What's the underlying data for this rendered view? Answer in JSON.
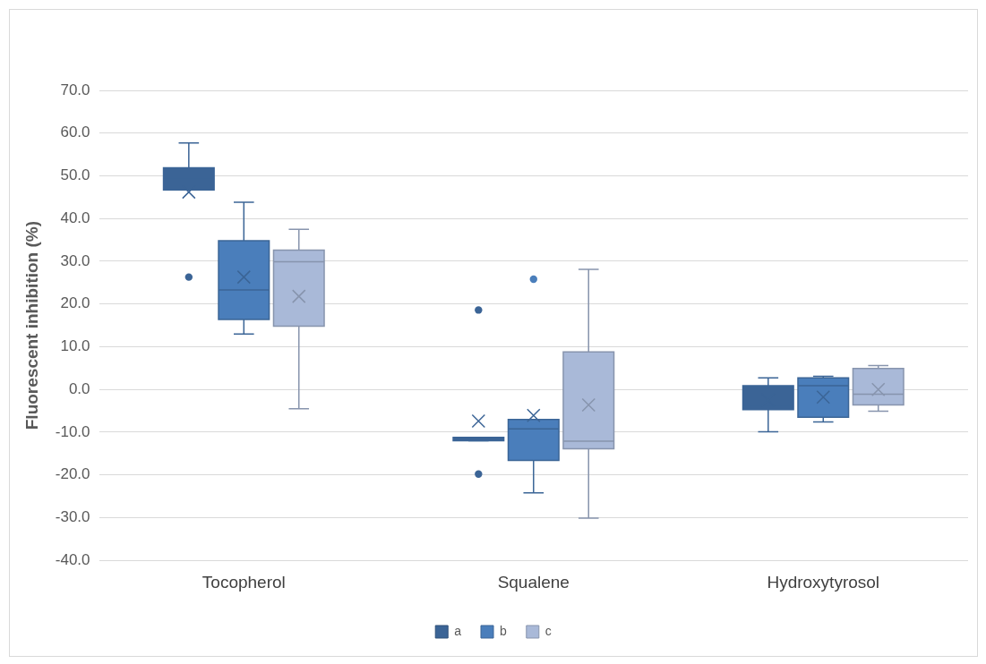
{
  "chart_data": {
    "type": "box",
    "ylabel": "Fluorescent inhibition (%)",
    "categories": [
      "Tocopherol",
      "Squalene",
      "Hydroxytyrosol"
    ],
    "ylim": [
      -40,
      70
    ],
    "yticks": [
      {
        "value": -40,
        "label": "-40.0"
      },
      {
        "value": -30,
        "label": "-30.0"
      },
      {
        "value": -20,
        "label": "-20.0"
      },
      {
        "value": -10,
        "label": "-10.0"
      },
      {
        "value": 0,
        "label": "0.0"
      },
      {
        "value": 10,
        "label": "10.0"
      },
      {
        "value": 20,
        "label": "20.0"
      },
      {
        "value": 30,
        "label": "30.0"
      },
      {
        "value": 40,
        "label": "40.0"
      },
      {
        "value": 50,
        "label": "50.0"
      },
      {
        "value": 60,
        "label": "60.0"
      },
      {
        "value": 70,
        "label": "70.0"
      }
    ],
    "grid": "y",
    "legend": "bottom",
    "marker": "cross",
    "series": [
      {
        "name": "a",
        "color": "#3b6496",
        "boxes": [
          {
            "low": 46.7,
            "q1": 46.7,
            "median": 49.2,
            "q3": 51.9,
            "high": 57.7,
            "mean": 46.2,
            "outliers": [
              26.3
            ]
          },
          {
            "low": -12,
            "q1": -12,
            "median": -11.8,
            "q3": -11.2,
            "high": -11.2,
            "mean": -7.4,
            "outliers": [
              18.6,
              -19.8
            ]
          },
          {
            "low": -9.9,
            "q1": -4.7,
            "median": -4.0,
            "q3": 0.9,
            "high": 2.7,
            "mean": -2.5
          }
        ]
      },
      {
        "name": "b",
        "color": "#4a7ebb",
        "boxes": [
          {
            "low": 13.0,
            "q1": 16.4,
            "median": 23.3,
            "q3": 34.8,
            "high": 43.8,
            "mean": 26.3
          },
          {
            "low": -24.2,
            "q1": -16.6,
            "median": -9.2,
            "q3": -7.0,
            "high": -7.0,
            "mean": -6.1,
            "outliers": [
              25.8
            ]
          },
          {
            "low": -7.6,
            "q1": -6.5,
            "median": 0.9,
            "q3": 2.7,
            "high": 3.1,
            "mean": -1.8
          }
        ]
      },
      {
        "name": "c",
        "color": "#a9b9d8",
        "boxes": [
          {
            "low": -4.5,
            "q1": 14.8,
            "median": 29.9,
            "q3": 32.6,
            "high": 37.5,
            "mean": 21.8
          },
          {
            "low": -30.1,
            "q1": -13.9,
            "median": -12.1,
            "q3": 8.8,
            "high": 28.1,
            "mean": -3.6
          },
          {
            "low": -5.1,
            "q1": -3.6,
            "median": -1.1,
            "q3": 4.9,
            "high": 5.6,
            "mean": 0
          }
        ]
      }
    ]
  }
}
